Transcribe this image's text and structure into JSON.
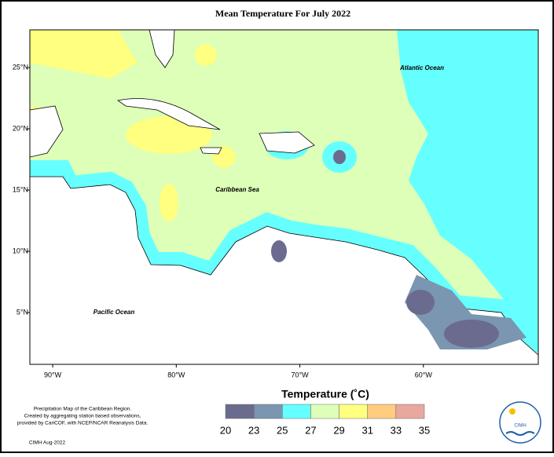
{
  "title": "Mean Temperature For July 2022",
  "labels": [
    "Atlantic Ocean",
    "Caribbean Sea",
    "Pacific Ocean"
  ],
  "map": {
    "xlim": [
      -91.85,
      -50.7
    ],
    "ylim": [
      0.77,
      28.08
    ],
    "xticks": [
      {
        "value": -90,
        "label": "90°W"
      },
      {
        "value": -80,
        "label": "80°W"
      },
      {
        "value": -70,
        "label": "70°W"
      },
      {
        "value": -60,
        "label": "60°W"
      }
    ],
    "yticks": [
      {
        "value": 5,
        "label": "5°N"
      },
      {
        "value": 10,
        "label": "10°N"
      },
      {
        "value": 15,
        "label": "15°N"
      },
      {
        "value": 20,
        "label": "20°N"
      },
      {
        "value": 25,
        "label": "25°N"
      }
    ]
  },
  "legend": {
    "title": "Temperature (˚C)",
    "ticks": [
      20,
      23,
      25,
      27,
      29,
      31,
      33,
      35
    ],
    "colors": [
      "#6b6b8f",
      "#7a96b0",
      "#66ffff",
      "#ddffb8",
      "#ffff80",
      "#ffcc80",
      "#e8a8a0"
    ]
  },
  "footer": [
    "Precipitation Map of the Caribbean Region.",
    "Created by aggregating station based observations,",
    "provided by CariCOF, with NCEP/NCAR Reanalysis Data.",
    "CIMH Aug-2022"
  ],
  "logo": "CIMH"
}
